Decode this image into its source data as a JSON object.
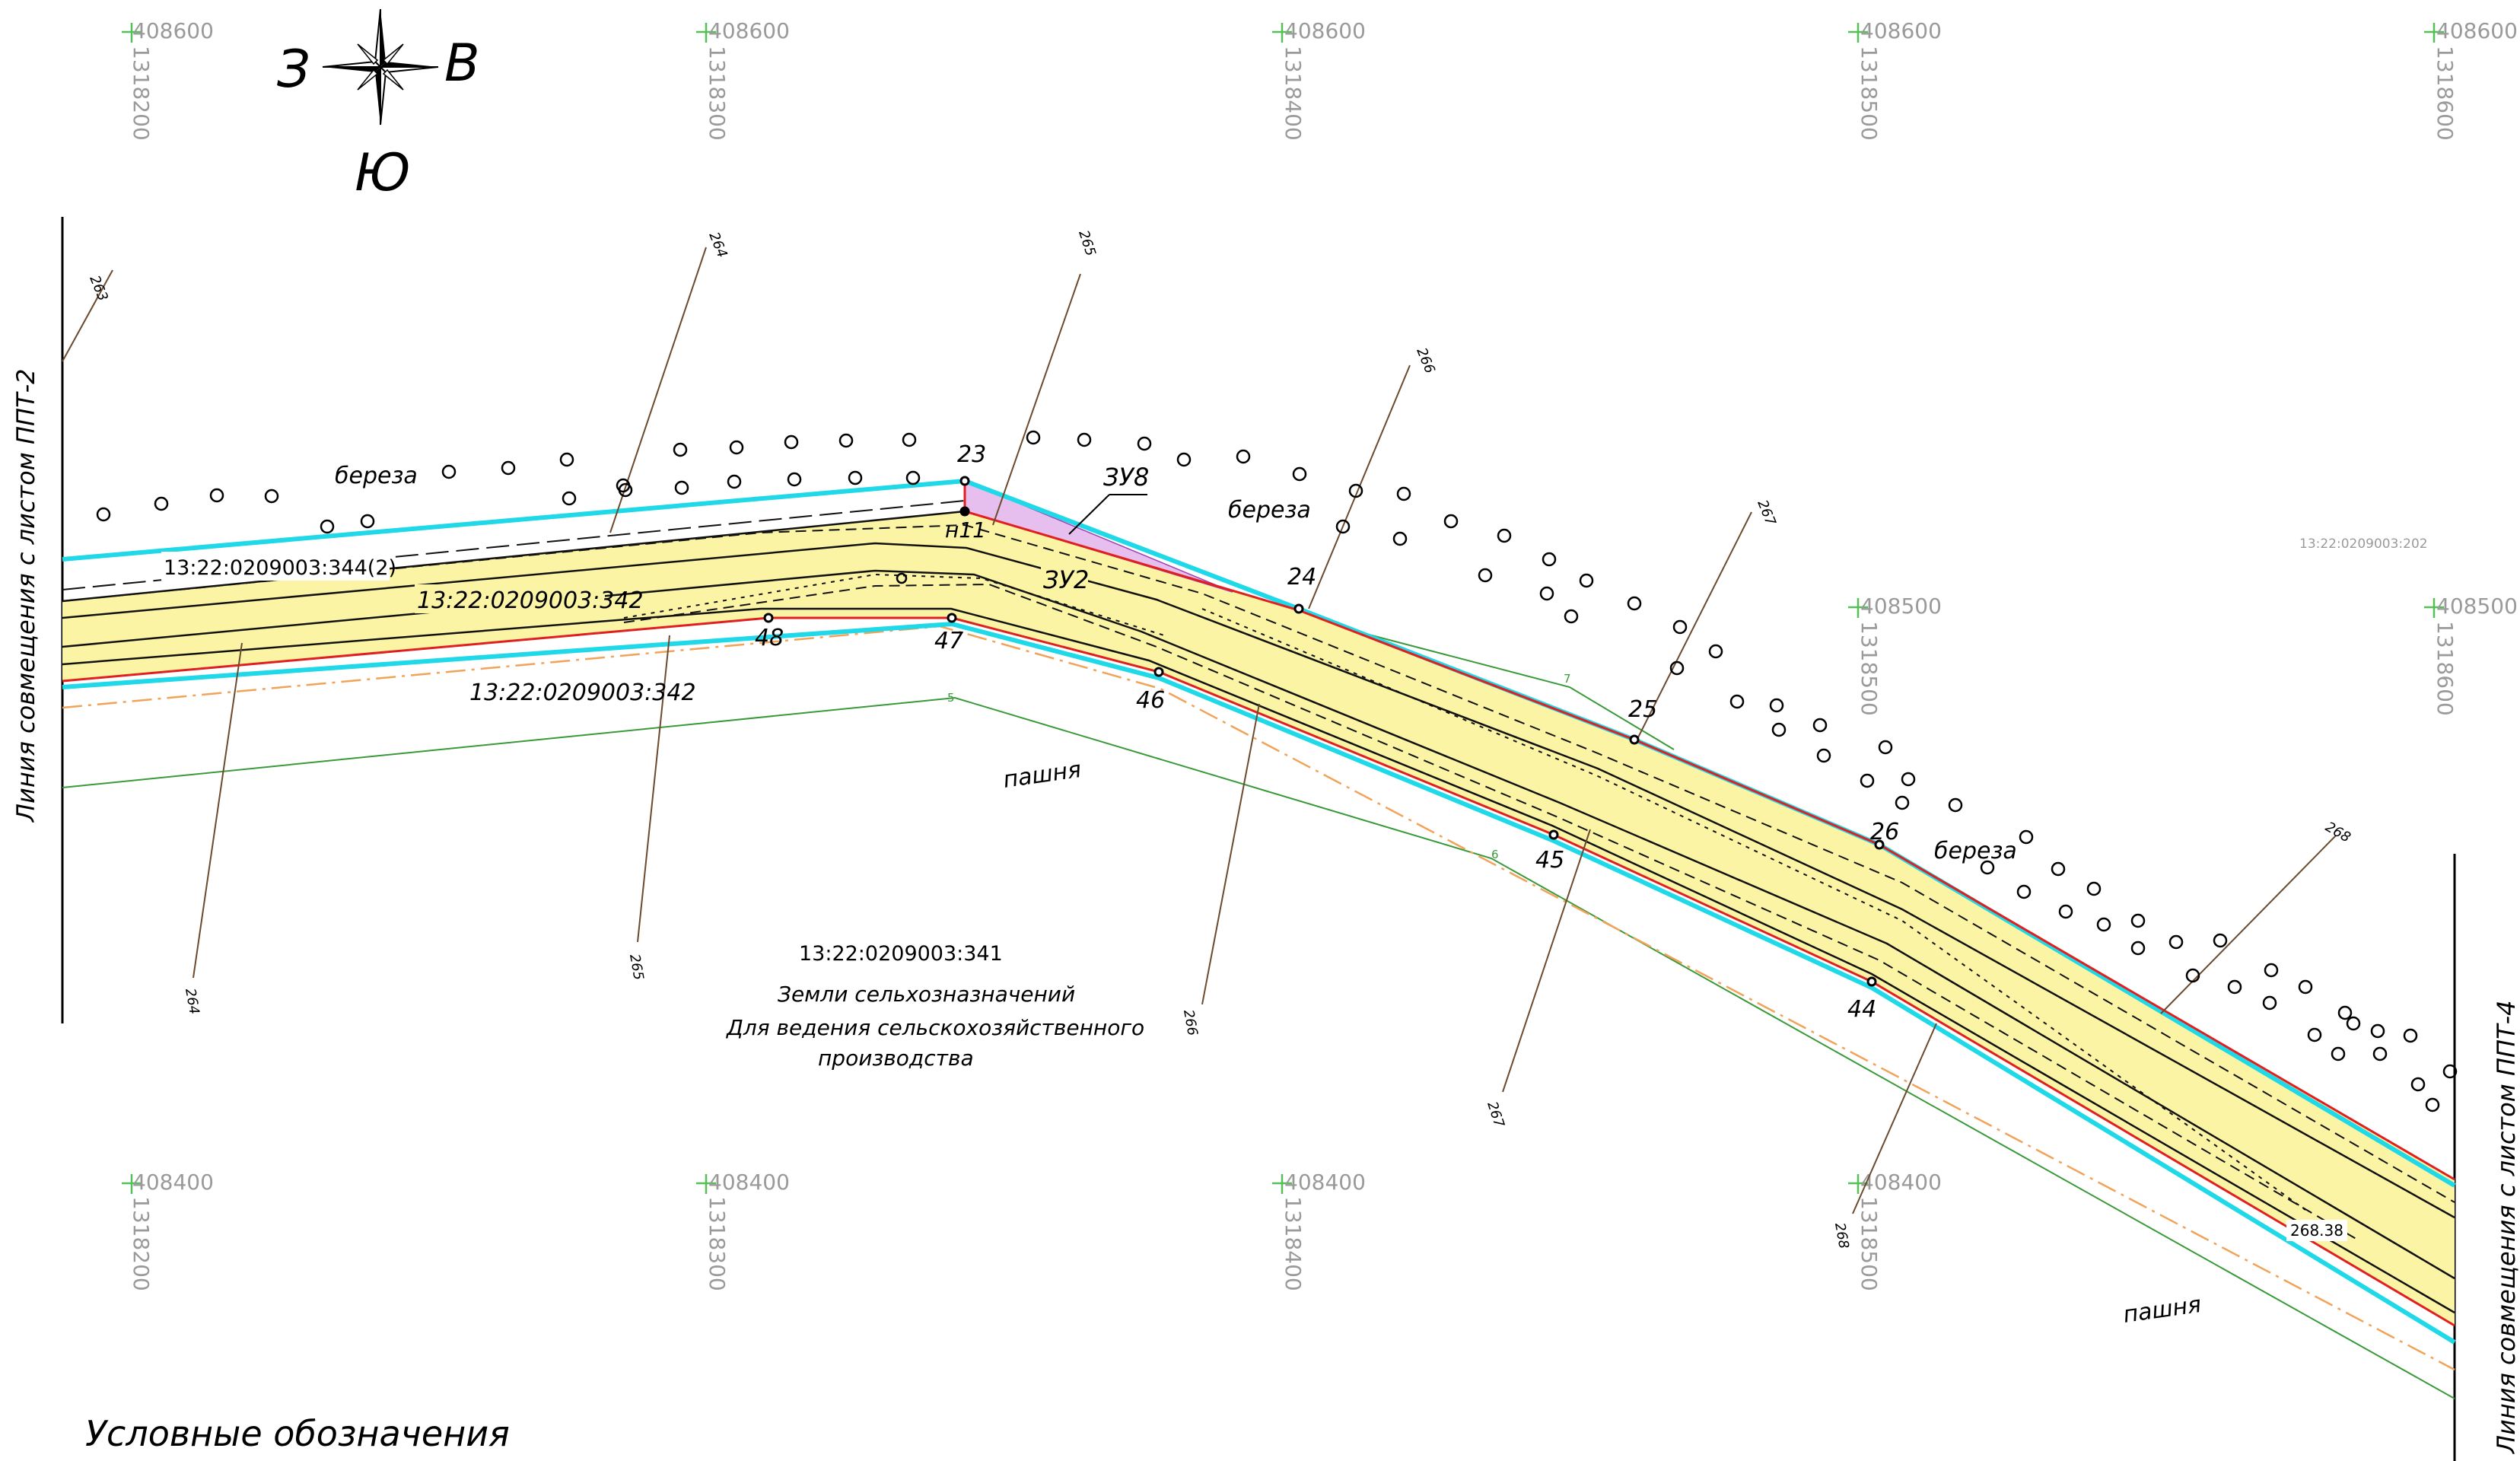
{
  "compass": {
    "west": "З",
    "east": "В",
    "south": "Ю"
  },
  "grid": {
    "top_y": "408600",
    "mid_y": "408500",
    "bottom_y": "408400",
    "x_values": [
      "1318200",
      "1318300",
      "1318400",
      "1318500",
      "1318600"
    ]
  },
  "parcels": {
    "p344_2": "13:22:0209003:344(2)",
    "p342_inside": "13:22:0209003:342",
    "p342_outside": "13:22:0209003:342",
    "p341": "13:22:0209003:341",
    "p202": "13:22:0209003:202",
    "land_category": "Земли сельхозназначений",
    "land_use_line1": "Для ведения сельскохозяйственного",
    "land_use_line2": "производства"
  },
  "zones": {
    "zu8": "ЗУ8",
    "zu2": "ЗУ2"
  },
  "points": {
    "p23": "23",
    "n11": "н11",
    "p24": "24",
    "p25": "25",
    "p26": "26",
    "p44": "44",
    "p45": "45",
    "p46": "46",
    "p47": "47",
    "p48": "48"
  },
  "terrain": {
    "birch1": "береза",
    "birch2": "береза",
    "birch3": "береза",
    "field1": "пашня",
    "field2": "пашня"
  },
  "contours": {
    "c263": "263",
    "c264a": "264",
    "c264b": "264",
    "c265a": "265",
    "c265b": "265",
    "c266a": "266",
    "c266b": "266",
    "c267a": "267",
    "c267b": "267",
    "c268a": "268",
    "c268b": "268"
  },
  "small_marks": {
    "m5": "5",
    "m6": "6",
    "m7": "7"
  },
  "elevation": "268.38",
  "side_labels": {
    "left": "Линия совмещения с листом ППТ-2",
    "right": "Линия совмещения с листом ППТ-4"
  },
  "legend_title": "Условные обозначения",
  "colors": {
    "road_fill": "#fbf4a4",
    "zu8_fill": "#e7bfef",
    "cyan_border": "#1fd8e8",
    "red_border": "#e02020",
    "contour_line": "#6b4a2e",
    "green_line": "#3a9a3a",
    "orange_line": "#f2a35a",
    "grid_text": "#9a9a9a"
  }
}
